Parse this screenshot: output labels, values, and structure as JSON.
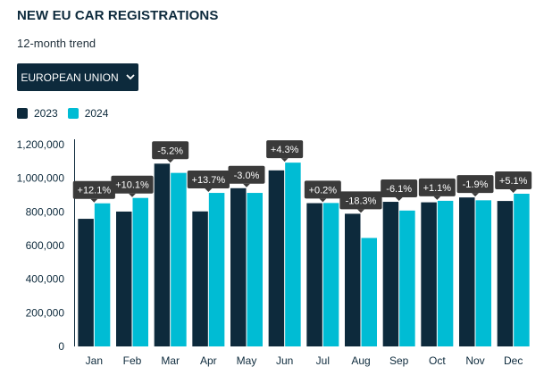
{
  "header": {
    "title": "NEW EU CAR REGISTRATIONS",
    "subtitle": "12-month trend"
  },
  "region_selector": {
    "label": "EUROPEAN UNION",
    "icon": "chevron-down-icon"
  },
  "colors": {
    "series_2023": "#0d2a3c",
    "series_2024": "#00bcd4",
    "annotation_bg": "#3a3a3a",
    "axis": "#0d2a3c"
  },
  "chart_data": {
    "type": "bar",
    "categories": [
      "Jan",
      "Feb",
      "Mar",
      "Apr",
      "May",
      "Jun",
      "Jul",
      "Aug",
      "Sep",
      "Oct",
      "Nov",
      "Dec"
    ],
    "series": [
      {
        "name": "2023",
        "values": [
          759000,
          802000,
          1087000,
          803000,
          941000,
          1047000,
          852000,
          789000,
          860000,
          857000,
          886000,
          865000
        ]
      },
      {
        "name": "2024",
        "values": [
          851000,
          883000,
          1032000,
          913000,
          913000,
          1093000,
          853000,
          645000,
          808000,
          866000,
          869000,
          908000
        ]
      }
    ],
    "changes": [
      "+12.1%",
      "+10.1%",
      "-5.2%",
      "+13.7%",
      "-3.0%",
      "+4.3%",
      "+0.2%",
      "-18.3%",
      "-6.1%",
      "+1.1%",
      "-1.9%",
      "+5.1%"
    ],
    "y_ticks": [
      "0",
      "200,000",
      "400,000",
      "600,000",
      "800,000",
      "1,000,000",
      "1,200,000"
    ],
    "ylim": [
      0,
      1200000
    ],
    "legend": "top-left",
    "grid": false,
    "title": "NEW EU CAR REGISTRATIONS",
    "subtitle": "12-month trend"
  }
}
